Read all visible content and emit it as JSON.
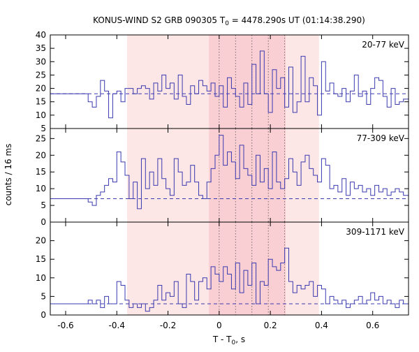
{
  "chart_data": {
    "type": "line",
    "title_main": "KONUS-WIND S2 GRB 090305 T",
    "title_sub": "0",
    "title_rest": " = 4478.290s UT (01:14:38.290)",
    "xlabel_main": "T - T",
    "xlabel_sub": "0",
    "xlabel_rest": ", s",
    "ylabel": "counts / 16 ms",
    "xlim": [
      -0.66,
      0.74
    ],
    "xticks": [
      -0.6,
      -0.4,
      -0.2,
      0,
      0.2,
      0.4,
      0.6
    ],
    "xtick_labels": [
      "-0.6",
      "-0.4",
      "-0.2",
      "0",
      "0.2",
      "0.4",
      "0.6"
    ],
    "colors": {
      "line": "#3a3ab0",
      "shade_light": "#fde6e6",
      "shade_dark": "#f9cfd3"
    },
    "shade_light": [
      -0.36,
      0.39
    ],
    "shade_dark": [
      -0.04,
      0.26
    ],
    "vlines": [
      0.0,
      0.064,
      0.128,
      0.192,
      0.256
    ],
    "panels": [
      {
        "label": "20-77 keV",
        "ylim": [
          5,
          40
        ],
        "yticks": [
          5,
          10,
          15,
          20,
          25,
          30,
          35,
          40
        ],
        "ytick_labels": [
          "5",
          "10",
          "15",
          "20",
          "25",
          "30",
          "35",
          "40"
        ],
        "background": 18,
        "x": [
          -0.66,
          -0.512,
          -0.496,
          -0.48,
          -0.464,
          -0.448,
          -0.432,
          -0.416,
          -0.4,
          -0.384,
          -0.368,
          -0.352,
          -0.336,
          -0.32,
          -0.304,
          -0.288,
          -0.272,
          -0.256,
          -0.24,
          -0.224,
          -0.208,
          -0.192,
          -0.176,
          -0.16,
          -0.144,
          -0.128,
          -0.112,
          -0.096,
          -0.08,
          -0.064,
          -0.048,
          -0.032,
          -0.016,
          0.0,
          0.016,
          0.032,
          0.048,
          0.064,
          0.08,
          0.096,
          0.112,
          0.128,
          0.144,
          0.16,
          0.176,
          0.192,
          0.208,
          0.224,
          0.24,
          0.256,
          0.272,
          0.288,
          0.304,
          0.32,
          0.336,
          0.352,
          0.368,
          0.384,
          0.4,
          0.416,
          0.432,
          0.448,
          0.464,
          0.48,
          0.496,
          0.512,
          0.528,
          0.544,
          0.56,
          0.576,
          0.592,
          0.608,
          0.624,
          0.64,
          0.656,
          0.672,
          0.688,
          0.704,
          0.72
        ],
        "values": [
          18,
          15,
          13,
          17,
          23,
          19,
          9,
          18,
          19,
          15,
          20,
          20,
          18,
          20,
          21,
          20,
          16,
          22,
          19,
          25,
          20,
          22,
          16,
          25,
          17,
          14,
          21,
          18,
          23,
          21,
          19,
          22,
          17,
          21,
          13,
          24,
          20,
          17,
          13,
          22,
          14,
          29,
          18,
          34,
          18,
          11,
          27,
          20,
          24,
          13,
          28,
          11,
          15,
          32,
          15,
          24,
          21,
          10,
          30,
          19,
          22,
          18,
          17,
          20,
          15,
          19,
          25,
          17,
          19,
          14,
          20,
          24,
          23,
          17,
          13,
          20,
          14,
          15,
          16
        ]
      },
      {
        "label": "77-309 keV",
        "ylim": [
          0,
          28
        ],
        "yticks": [
          0,
          5,
          10,
          15,
          20,
          25
        ],
        "ytick_labels": [
          "0",
          "5",
          "10",
          "15",
          "20",
          "25"
        ],
        "background": 7,
        "x": [
          -0.66,
          -0.512,
          -0.496,
          -0.48,
          -0.464,
          -0.448,
          -0.432,
          -0.416,
          -0.4,
          -0.384,
          -0.368,
          -0.352,
          -0.336,
          -0.32,
          -0.304,
          -0.288,
          -0.272,
          -0.256,
          -0.24,
          -0.224,
          -0.208,
          -0.192,
          -0.176,
          -0.16,
          -0.144,
          -0.128,
          -0.112,
          -0.096,
          -0.08,
          -0.064,
          -0.048,
          -0.032,
          -0.016,
          0.0,
          0.016,
          0.032,
          0.048,
          0.064,
          0.08,
          0.096,
          0.112,
          0.128,
          0.144,
          0.16,
          0.176,
          0.192,
          0.208,
          0.224,
          0.24,
          0.256,
          0.272,
          0.288,
          0.304,
          0.32,
          0.336,
          0.352,
          0.368,
          0.384,
          0.4,
          0.416,
          0.432,
          0.448,
          0.464,
          0.48,
          0.496,
          0.512,
          0.528,
          0.544,
          0.56,
          0.576,
          0.592,
          0.608,
          0.624,
          0.64,
          0.656,
          0.672,
          0.688,
          0.704,
          0.72
        ],
        "values": [
          7,
          6,
          5,
          8,
          9,
          11,
          13,
          12,
          21,
          18,
          14,
          7,
          12,
          4,
          19,
          10,
          15,
          11,
          19,
          13,
          10,
          8,
          19,
          15,
          11,
          12,
          17,
          12,
          8,
          7,
          12,
          16,
          20,
          26,
          17,
          21,
          18,
          13,
          23,
          16,
          14,
          11,
          20,
          12,
          16,
          10,
          21,
          12,
          10,
          13,
          19,
          15,
          11,
          18,
          20,
          16,
          14,
          12,
          19,
          17,
          10,
          11,
          9,
          13,
          8,
          12,
          10,
          11,
          9,
          10,
          8,
          11,
          9,
          10,
          8,
          9,
          10,
          9,
          8
        ]
      },
      {
        "label": "309-1171 keV",
        "ylim": [
          0,
          25
        ],
        "yticks": [
          0,
          5,
          10,
          15,
          20
        ],
        "ytick_labels": [
          "0",
          "5",
          "10",
          "15",
          "20"
        ],
        "background": 3,
        "x": [
          -0.66,
          -0.512,
          -0.496,
          -0.48,
          -0.464,
          -0.448,
          -0.432,
          -0.416,
          -0.4,
          -0.384,
          -0.368,
          -0.352,
          -0.336,
          -0.32,
          -0.304,
          -0.288,
          -0.272,
          -0.256,
          -0.24,
          -0.224,
          -0.208,
          -0.192,
          -0.176,
          -0.16,
          -0.144,
          -0.128,
          -0.112,
          -0.096,
          -0.08,
          -0.064,
          -0.048,
          -0.032,
          -0.016,
          0.0,
          0.016,
          0.032,
          0.048,
          0.064,
          0.08,
          0.096,
          0.112,
          0.128,
          0.144,
          0.16,
          0.176,
          0.192,
          0.208,
          0.224,
          0.24,
          0.256,
          0.272,
          0.288,
          0.304,
          0.32,
          0.336,
          0.352,
          0.368,
          0.384,
          0.4,
          0.416,
          0.432,
          0.448,
          0.464,
          0.48,
          0.496,
          0.512,
          0.528,
          0.544,
          0.56,
          0.576,
          0.592,
          0.608,
          0.624,
          0.64,
          0.656,
          0.672,
          0.688,
          0.704,
          0.72
        ],
        "values": [
          3,
          4,
          3,
          4,
          2,
          5,
          3,
          3,
          9,
          8,
          4,
          2,
          3,
          2,
          3,
          1,
          2,
          4,
          8,
          4,
          6,
          5,
          9,
          3,
          2,
          11,
          9,
          4,
          9,
          10,
          7,
          13,
          11,
          9,
          13,
          11,
          7,
          14,
          6,
          12,
          8,
          14,
          3,
          9,
          8,
          15,
          13,
          12,
          14,
          18,
          9,
          6,
          8,
          7,
          8,
          9,
          5,
          8,
          7,
          3,
          5,
          4,
          3,
          4,
          2,
          3,
          4,
          5,
          3,
          4,
          6,
          4,
          5,
          3,
          4,
          3,
          2,
          4,
          3
        ]
      }
    ]
  }
}
